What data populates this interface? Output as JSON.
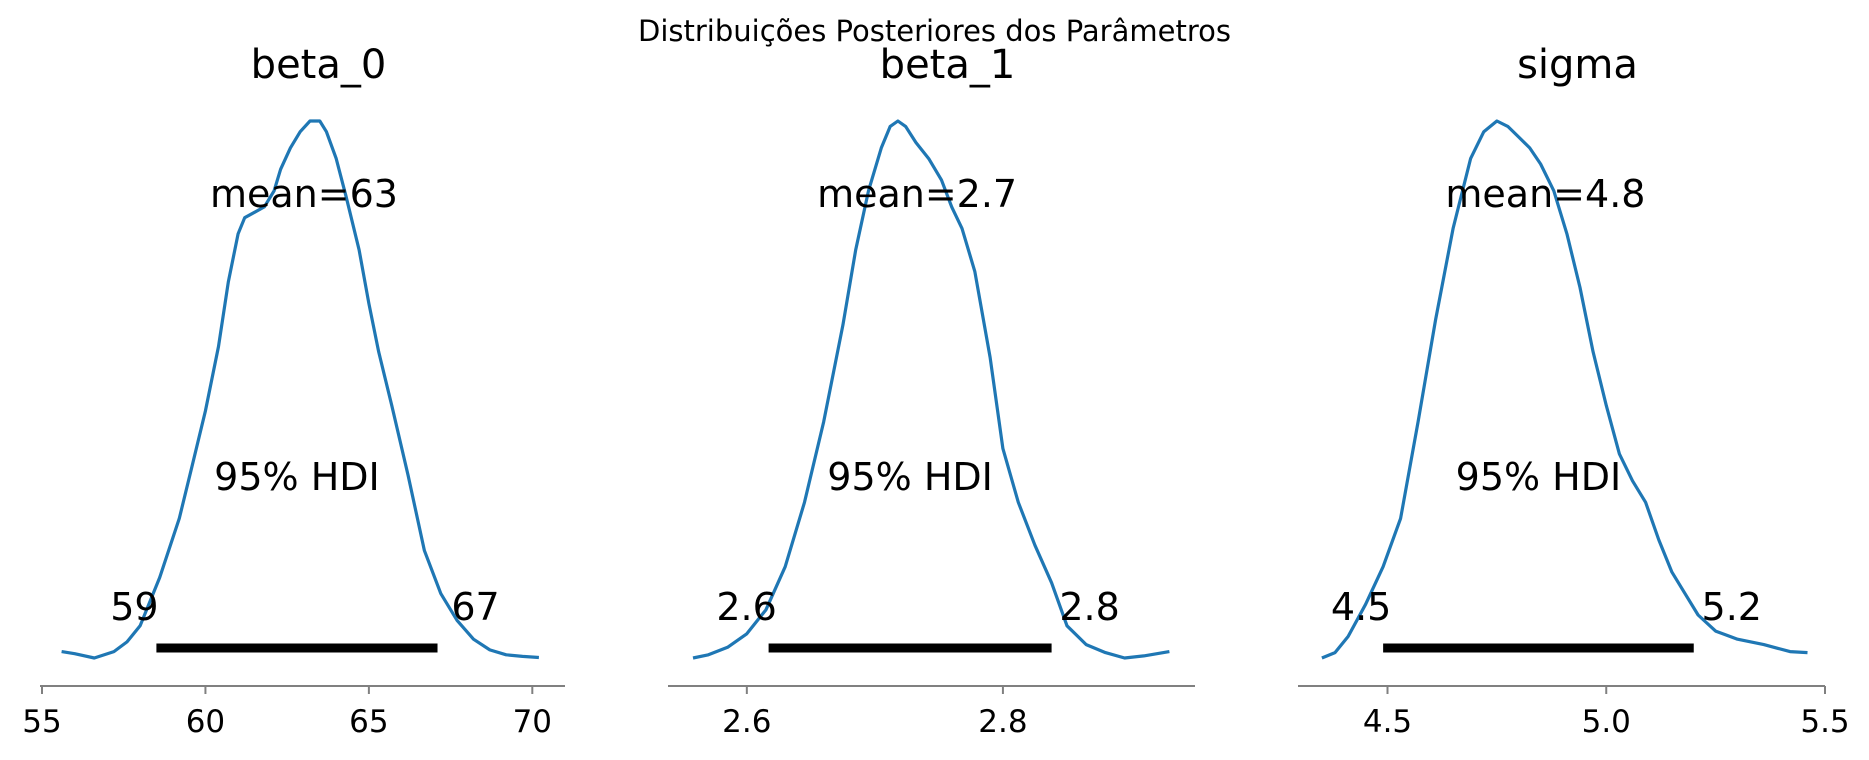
{
  "chart_data": {
    "type": "line",
    "title": "Distribuições Posteriores dos Parâmetros",
    "colors": {
      "density": "#1f77b4",
      "hdi_bar": "#000000",
      "axis": "#808080"
    },
    "panels": [
      {
        "title": "beta_0",
        "mean_label": "mean=63",
        "hdi_label": "95% HDI",
        "hdi": [
          58.5,
          67.1
        ],
        "hdi_low_label": "59",
        "hdi_high_label": "67",
        "xlim": [
          55,
          71
        ],
        "xticks": [
          55,
          60,
          65,
          70
        ],
        "xtick_labels": [
          "55",
          "60",
          "65",
          "70"
        ],
        "density_max": 1.0,
        "density": {
          "x": [
            55.6,
            56.0,
            56.6,
            57.2,
            57.6,
            58.0,
            58.6,
            59.2,
            59.6,
            60.0,
            60.4,
            60.7,
            61.0,
            61.2,
            61.5,
            61.8,
            62.1,
            62.3,
            62.6,
            62.9,
            63.2,
            63.5,
            63.7,
            64.0,
            64.3,
            64.7,
            65.0,
            65.3,
            65.7,
            66.2,
            66.7,
            67.2,
            67.7,
            68.2,
            68.7,
            69.2,
            69.7,
            70.2
          ],
          "y": [
            0.012,
            0.008,
            0.0,
            0.012,
            0.03,
            0.06,
            0.15,
            0.26,
            0.36,
            0.46,
            0.58,
            0.7,
            0.79,
            0.82,
            0.83,
            0.84,
            0.87,
            0.91,
            0.95,
            0.98,
            1.0,
            1.0,
            0.98,
            0.93,
            0.86,
            0.76,
            0.66,
            0.57,
            0.47,
            0.34,
            0.2,
            0.12,
            0.07,
            0.035,
            0.015,
            0.006,
            0.003,
            0.001
          ]
        }
      },
      {
        "title": "beta_1",
        "mean_label": "mean=2.7",
        "hdi_label": "95% HDI",
        "hdi": [
          2.617,
          2.838
        ],
        "hdi_low_label": "2.6",
        "hdi_high_label": "2.8",
        "xlim": [
          2.54,
          2.95
        ],
        "xticks": [
          2.6,
          2.8
        ],
        "xtick_labels": [
          "2.6",
          "2.8"
        ],
        "density_max": 1.0,
        "density": {
          "x": [
            2.558,
            2.57,
            2.585,
            2.6,
            2.615,
            2.63,
            2.645,
            2.66,
            2.675,
            2.685,
            2.695,
            2.705,
            2.712,
            2.718,
            2.724,
            2.732,
            2.742,
            2.752,
            2.76,
            2.768,
            2.778,
            2.79,
            2.8,
            2.812,
            2.825,
            2.838,
            2.85,
            2.865,
            2.88,
            2.895,
            2.91,
            2.93
          ],
          "y": [
            0.0,
            0.006,
            0.02,
            0.045,
            0.09,
            0.17,
            0.29,
            0.44,
            0.62,
            0.76,
            0.87,
            0.95,
            0.99,
            1.0,
            0.99,
            0.96,
            0.93,
            0.89,
            0.84,
            0.8,
            0.72,
            0.56,
            0.39,
            0.29,
            0.21,
            0.14,
            0.06,
            0.025,
            0.01,
            0.0,
            0.004,
            0.012
          ]
        }
      },
      {
        "title": "sigma",
        "mean_label": "mean=4.8",
        "hdi_label": "95% HDI",
        "hdi": [
          4.49,
          5.2
        ],
        "hdi_low_label": "4.5",
        "hdi_high_label": "5.2",
        "xlim": [
          4.3,
          5.5
        ],
        "xticks": [
          4.5,
          5.0,
          5.5
        ],
        "xtick_labels": [
          "4.5",
          "5.0",
          "5.5"
        ],
        "density_max": 1.0,
        "density": {
          "x": [
            4.35,
            4.38,
            4.41,
            4.45,
            4.49,
            4.53,
            4.57,
            4.61,
            4.65,
            4.69,
            4.72,
            4.75,
            4.775,
            4.8,
            4.825,
            4.85,
            4.88,
            4.91,
            4.94,
            4.97,
            5.0,
            5.03,
            5.06,
            5.09,
            5.12,
            5.15,
            5.18,
            5.21,
            5.25,
            5.3,
            5.36,
            5.42,
            5.46
          ],
          "y": [
            0.0,
            0.01,
            0.04,
            0.1,
            0.17,
            0.26,
            0.44,
            0.63,
            0.8,
            0.93,
            0.98,
            1.0,
            0.99,
            0.97,
            0.95,
            0.92,
            0.87,
            0.79,
            0.69,
            0.57,
            0.47,
            0.38,
            0.33,
            0.29,
            0.22,
            0.16,
            0.12,
            0.08,
            0.05,
            0.035,
            0.025,
            0.012,
            0.01
          ]
        }
      }
    ]
  }
}
